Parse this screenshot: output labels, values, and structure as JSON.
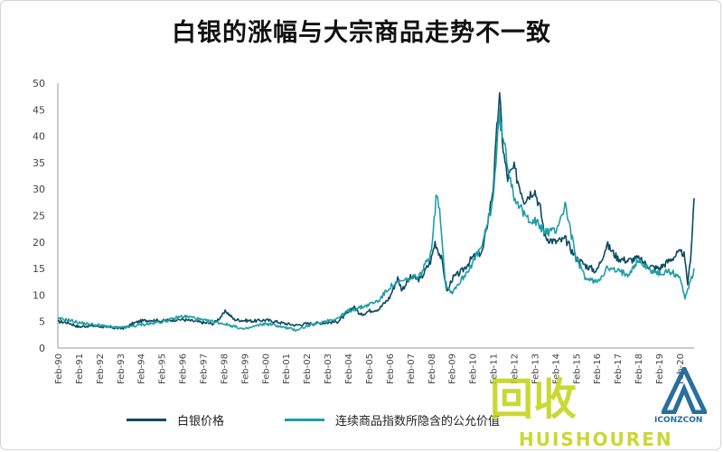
{
  "chart_data": {
    "type": "line",
    "title": "白银的涨幅与大宗商品走势不一致",
    "xlabel": "",
    "ylabel": "",
    "ylim": [
      0,
      50
    ],
    "yticks": [
      0,
      5,
      10,
      15,
      20,
      25,
      30,
      35,
      40,
      45,
      50
    ],
    "xlim": [
      1990.0,
      2020.7
    ],
    "xtick_labels": [
      "Feb-90",
      "Feb-91",
      "Feb-92",
      "Feb-93",
      "Feb-94",
      "Feb-95",
      "Feb-96",
      "Feb-97",
      "Feb-98",
      "Feb-99",
      "Feb-00",
      "Feb-01",
      "Feb-02",
      "Feb-03",
      "Feb-04",
      "Feb-05",
      "Feb-06",
      "Feb-07",
      "Feb-08",
      "Feb-09",
      "Feb-10",
      "Feb-11",
      "Feb-12",
      "Feb-13",
      "Feb-14",
      "Feb-15",
      "Feb-16",
      "Feb-17",
      "Feb-18",
      "Feb-19",
      "Feb-20"
    ],
    "grid": false,
    "legend_position": "bottom",
    "series": [
      {
        "name": "白银价格",
        "color": "#0d4a63",
        "x": [
          1990.0,
          1990.5,
          1991.0,
          1991.5,
          1992.0,
          1992.5,
          1993.0,
          1993.3,
          1993.6,
          1994.0,
          1994.5,
          1995.0,
          1995.5,
          1996.0,
          1996.5,
          1997.0,
          1997.5,
          1998.0,
          1998.1,
          1998.5,
          1999.0,
          1999.5,
          2000.0,
          2000.5,
          2001.0,
          2001.5,
          2002.0,
          2002.5,
          2003.0,
          2003.5,
          2004.0,
          2004.3,
          2004.6,
          2005.0,
          2005.5,
          2006.0,
          2006.4,
          2006.6,
          2007.0,
          2007.5,
          2008.0,
          2008.2,
          2008.5,
          2008.8,
          2009.0,
          2009.5,
          2010.0,
          2010.5,
          2011.0,
          2011.3,
          2011.5,
          2011.7,
          2012.0,
          2012.5,
          2013.0,
          2013.3,
          2013.5,
          2014.0,
          2014.5,
          2015.0,
          2015.5,
          2016.0,
          2016.5,
          2017.0,
          2017.5,
          2018.0,
          2018.5,
          2019.0,
          2019.5,
          2019.9,
          2020.2,
          2020.4,
          2020.55,
          2020.7
        ],
        "y": [
          5.0,
          4.8,
          4.0,
          4.2,
          4.1,
          3.9,
          3.7,
          3.9,
          4.6,
          5.1,
          5.3,
          5.1,
          5.3,
          5.4,
          5.1,
          4.8,
          4.6,
          6.4,
          7.0,
          5.4,
          5.2,
          5.1,
          5.3,
          5.0,
          4.6,
          4.3,
          4.6,
          4.7,
          4.8,
          5.0,
          6.6,
          7.9,
          6.2,
          7.0,
          7.4,
          9.5,
          13.2,
          11.0,
          13.3,
          13.0,
          16.5,
          20.0,
          17.0,
          10.5,
          13.0,
          14.5,
          17.0,
          18.3,
          30.0,
          48.0,
          37.0,
          32.0,
          34.0,
          28.0,
          30.0,
          26.0,
          21.0,
          20.0,
          20.5,
          17.0,
          15.5,
          14.5,
          19.5,
          17.0,
          16.5,
          16.9,
          15.5,
          15.0,
          16.5,
          17.8,
          18.0,
          12.0,
          18.0,
          28.3
        ]
      },
      {
        "name": "连续商品指数所隐含的公允价值",
        "color": "#1e9ea6",
        "x": [
          1990.0,
          1990.5,
          1991.0,
          1991.5,
          1992.0,
          1992.5,
          1993.0,
          1993.5,
          1994.0,
          1994.5,
          1995.0,
          1995.5,
          1996.0,
          1996.5,
          1997.0,
          1997.5,
          1998.0,
          1998.5,
          1999.0,
          1999.5,
          2000.0,
          2000.5,
          2001.0,
          2001.5,
          2002.0,
          2002.5,
          2003.0,
          2003.5,
          2004.0,
          2004.5,
          2005.0,
          2005.5,
          2006.0,
          2006.5,
          2007.0,
          2007.5,
          2008.0,
          2008.3,
          2008.5,
          2008.7,
          2009.0,
          2009.5,
          2010.0,
          2010.5,
          2011.0,
          2011.3,
          2011.5,
          2012.0,
          2012.5,
          2013.0,
          2013.5,
          2014.0,
          2014.5,
          2015.0,
          2015.5,
          2016.0,
          2016.5,
          2017.0,
          2017.5,
          2018.0,
          2018.5,
          2019.0,
          2019.5,
          2020.0,
          2020.25,
          2020.5,
          2020.7
        ],
        "y": [
          5.5,
          5.3,
          4.8,
          4.5,
          4.3,
          4.0,
          3.8,
          4.0,
          4.4,
          4.6,
          5.0,
          5.4,
          6.0,
          5.8,
          5.2,
          5.0,
          4.6,
          4.1,
          3.5,
          4.1,
          4.6,
          4.3,
          3.8,
          3.4,
          4.1,
          4.6,
          5.2,
          5.6,
          7.0,
          7.5,
          8.2,
          9.0,
          11.5,
          12.5,
          13.0,
          13.8,
          18.0,
          30.0,
          23.0,
          12.0,
          10.5,
          13.0,
          16.0,
          19.5,
          28.0,
          44.0,
          39.0,
          29.0,
          25.0,
          24.0,
          22.0,
          22.0,
          27.0,
          17.0,
          13.0,
          12.5,
          15.0,
          14.5,
          14.0,
          16.5,
          15.0,
          14.0,
          14.5,
          13.5,
          9.5,
          12.5,
          14.5
        ]
      }
    ]
  },
  "legend": {
    "silver_label": "白银价格",
    "fair_value_label": "连续商品指数所隐含的公允价值"
  },
  "watermark": {
    "big_text": "回收",
    "small_text": "HUISHOUREN",
    "sub_text": "ICONZCON"
  }
}
